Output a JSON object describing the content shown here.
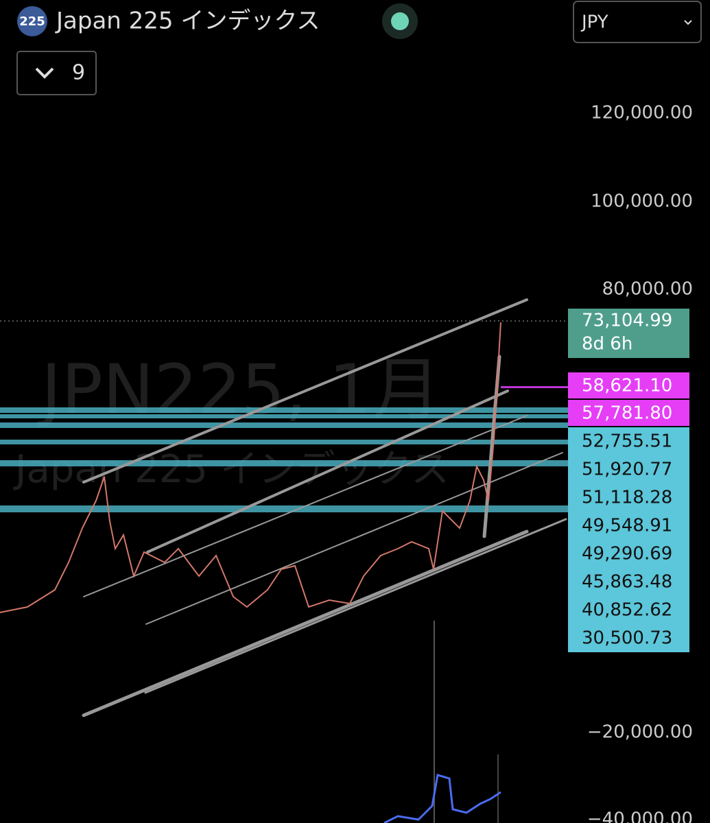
{
  "header": {
    "badge": "225",
    "title": "Japan 225 インデックス",
    "currency": "JPY",
    "indicator_count": "9"
  },
  "watermark": {
    "symbol": "JPN225, 1月",
    "name": "Japan 225 インデックス"
  },
  "price_axis": [
    "120,000.00",
    "100,000.00",
    "80,000.00",
    "−20,000.00",
    "−40,000.00"
  ],
  "current_price": {
    "price": "73,104.99",
    "countdown": "8d 6h"
  },
  "magenta_levels": [
    "58,621.10",
    "57,781.80"
  ],
  "cyan_levels": [
    "52,755.51",
    "51,920.77",
    "51,118.28",
    "49,548.91",
    "49,290.69",
    "45,863.48",
    "40,852.62",
    "30,500.73"
  ]
}
